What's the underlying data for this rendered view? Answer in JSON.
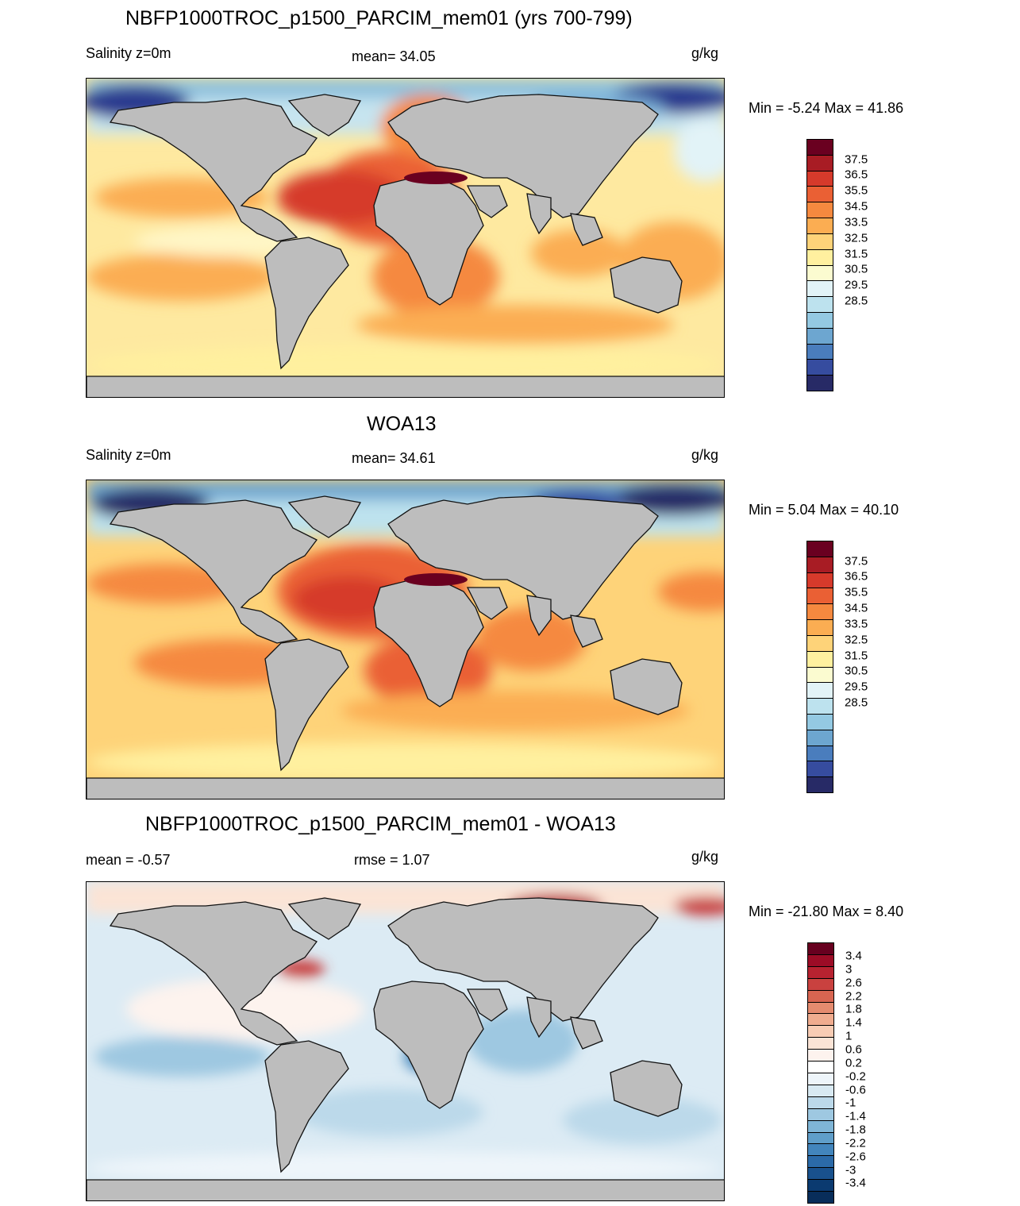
{
  "panels": [
    {
      "id": "model",
      "title": "NBFP1000TROC_p1500_PARCIM_mem01 (yrs 700-799)",
      "left": "Salinity z=0m",
      "center": "mean=  34.05",
      "units": "g/kg",
      "minmax": "Min =  -5.24 Max =  41.86",
      "colorbar": {
        "colors": [
          "#6a0020",
          "#a81c24",
          "#d63a2b",
          "#ea6034",
          "#f5893f",
          "#fbad52",
          "#fed379",
          "#fff09f",
          "#fbfbd0",
          "#e2f3f7",
          "#bde2ee",
          "#94c9e2",
          "#6da6d0",
          "#4a7dbd",
          "#364c9f",
          "#272a66"
        ],
        "labels": [
          "37.5",
          "36.5",
          "35.5",
          "34.5",
          "33.5",
          "32.5",
          "31.5",
          "30.5",
          "29.5",
          "28.5"
        ]
      }
    },
    {
      "id": "obs",
      "title": "WOA13",
      "left": "Salinity z=0m",
      "center": "mean=  34.61",
      "units": "g/kg",
      "minmax": "Min =   5.04 Max =  40.10",
      "colorbar": {
        "colors": [
          "#6a0020",
          "#a81c24",
          "#d63a2b",
          "#ea6034",
          "#f5893f",
          "#fbad52",
          "#fed379",
          "#fff09f",
          "#fbfbd0",
          "#e2f3f7",
          "#bde2ee",
          "#94c9e2",
          "#6da6d0",
          "#4a7dbd",
          "#364c9f",
          "#272a66"
        ],
        "labels": [
          "37.5",
          "36.5",
          "35.5",
          "34.5",
          "33.5",
          "32.5",
          "31.5",
          "30.5",
          "29.5",
          "28.5"
        ]
      }
    },
    {
      "id": "diff",
      "title": "NBFP1000TROC_p1500_PARCIM_mem01 - WOA13",
      "left": "mean =  -0.57",
      "center": "rmse =   1.07",
      "units": "g/kg",
      "minmax": "Min = -21.80 Max =   8.40",
      "colorbar": {
        "colors": [
          "#67001f",
          "#9c0c26",
          "#b72230",
          "#c9413f",
          "#d86551",
          "#e58b6f",
          "#f0ac8f",
          "#f8ccb4",
          "#fbe4d6",
          "#fdf3ee",
          "#ffffff",
          "#eef5fa",
          "#d8e9f2",
          "#bcd9ea",
          "#9ec8e1",
          "#7fb5d6",
          "#5f9ec9",
          "#4285bc",
          "#2b6aa8",
          "#19518d",
          "#0b3a70",
          "#082d5a"
        ],
        "labels": [
          "3.4",
          "3",
          "2.6",
          "2.2",
          "1.8",
          "1.4",
          "1",
          "0.6",
          "0.2",
          "-0.2",
          "-0.6",
          "-1",
          "-1.4",
          "-1.8",
          "-2.2",
          "-2.6",
          "-3",
          "-3.4"
        ]
      }
    }
  ]
}
